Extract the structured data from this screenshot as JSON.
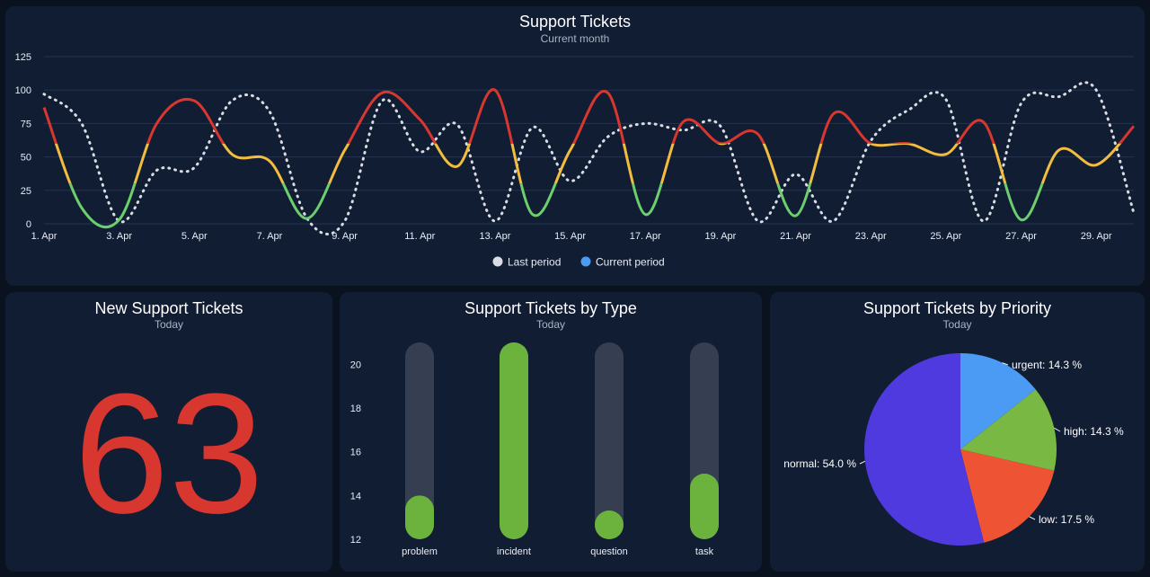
{
  "line_panel": {
    "title": "Support Tickets",
    "subtitle": "Current month"
  },
  "number_panel": {
    "title": "New Support Tickets",
    "subtitle": "Today",
    "value": "63"
  },
  "bar_panel": {
    "title": "Support Tickets by Type",
    "subtitle": "Today"
  },
  "pie_panel": {
    "title": "Support Tickets by Priority",
    "subtitle": "Today"
  },
  "colors": {
    "background": "#0a1220",
    "panel": "#111d33",
    "threshold_high": "#d7372f",
    "threshold_mid": "#f2bd3f",
    "threshold_low": "#6ccf6d",
    "last_period": "#d9dde3",
    "current_period": "#4b9bf5",
    "bar_fill": "#6cb33e",
    "bar_track": "#363f52",
    "number": "#d7372f"
  },
  "chart_data": [
    {
      "type": "line",
      "title": "Support Tickets",
      "subtitle": "Current month",
      "x": [
        "1. Apr",
        "2. Apr",
        "3. Apr",
        "4. Apr",
        "5. Apr",
        "6. Apr",
        "7. Apr",
        "8. Apr",
        "9. Apr",
        "10. Apr",
        "11. Apr",
        "12. Apr",
        "13. Apr",
        "14. Apr",
        "15. Apr",
        "16. Apr",
        "17. Apr",
        "18. Apr",
        "19. Apr",
        "20. Apr",
        "21. Apr",
        "22. Apr",
        "23. Apr",
        "24. Apr",
        "25. Apr",
        "26. Apr",
        "27. Apr",
        "28. Apr",
        "29. Apr",
        "30. Apr"
      ],
      "x_tick_labels": [
        "1. Apr",
        "3. Apr",
        "5. Apr",
        "7. Apr",
        "9. Apr",
        "11. Apr",
        "13. Apr",
        "15. Apr",
        "17. Apr",
        "19. Apr",
        "21. Apr",
        "23. Apr",
        "25. Apr",
        "27. Apr",
        "29. Apr"
      ],
      "y_ticks": [
        0,
        25,
        50,
        75,
        100,
        125
      ],
      "ylim": [
        0,
        125
      ],
      "thresholds": {
        "low_below": 30,
        "high_above": 60
      },
      "series": [
        {
          "name": "Last period",
          "style": "dotted",
          "values": [
            97,
            75,
            2,
            40,
            42,
            92,
            84,
            4,
            2,
            92,
            54,
            74,
            2,
            72,
            32,
            65,
            75,
            70,
            73,
            2,
            37,
            2,
            62,
            85,
            93,
            2,
            90,
            95,
            100,
            8
          ]
        },
        {
          "name": "Current period",
          "style": "threshold",
          "values": [
            87,
            12,
            3,
            75,
            92,
            52,
            47,
            4,
            55,
            98,
            78,
            43,
            100,
            7,
            55,
            98,
            7,
            76,
            60,
            67,
            6,
            82,
            60,
            60,
            52,
            76,
            3,
            55,
            44,
            73
          ]
        }
      ],
      "legend": {
        "position": "bottom-center",
        "items": [
          "Last period",
          "Current period"
        ]
      }
    },
    {
      "type": "bar",
      "title": "Support Tickets by Type",
      "subtitle": "Today",
      "categories": [
        "problem",
        "incident",
        "question",
        "task"
      ],
      "values": [
        14,
        21,
        12.9,
        15
      ],
      "ylim": [
        12,
        21
      ],
      "y_ticks": [
        12,
        14,
        16,
        18,
        20
      ]
    },
    {
      "type": "pie",
      "title": "Support Tickets by Priority",
      "subtitle": "Today",
      "slices": [
        {
          "label": "urgent: 14.3 %",
          "value": 14.3,
          "color": "#4b9bf5"
        },
        {
          "label": "high: 14.3 %",
          "value": 14.3,
          "color": "#78b843"
        },
        {
          "label": "low: 17.5 %",
          "value": 17.5,
          "color": "#ee5433"
        },
        {
          "label": "normal: 54.0 %",
          "value": 54.0,
          "color": "#4f3ae0"
        }
      ]
    }
  ]
}
